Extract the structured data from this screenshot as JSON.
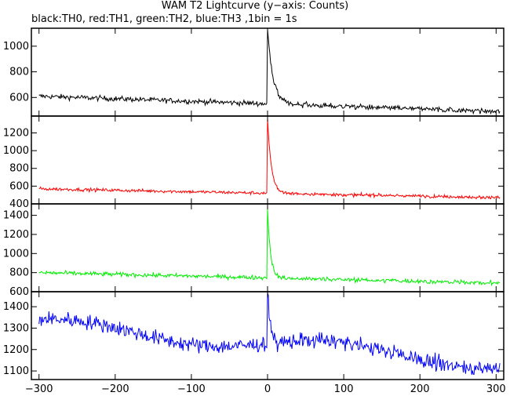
{
  "title": "WAM T2 Lightcurve (y−axis: Counts)",
  "subtitle": "black:TH0, red:TH1, green:TH2, blue:TH3 ,1bin = 1s",
  "chart_data": {
    "type": "line",
    "xlim": [
      -310,
      310
    ],
    "x_ticks": [
      -300,
      -200,
      -100,
      0,
      100,
      200,
      300
    ],
    "x_tick_labels": [
      "−300",
      "−200",
      "−100",
      "0",
      "100",
      "200",
      "300"
    ],
    "series": [
      {
        "name": "TH0",
        "color": "#000000",
        "ylim": [
          455,
          1140
        ],
        "y_ticks": [
          600,
          800,
          1000
        ],
        "y_tick_labels": [
          "600",
          "800",
          "1000"
        ],
        "baseline_start": 610,
        "baseline_end": 490,
        "noise": 20,
        "peak": 1130,
        "decay_tau": 7
      },
      {
        "name": "TH1",
        "color": "#ff0000",
        "ylim": [
          400,
          1390
        ],
        "y_ticks": [
          400,
          600,
          800,
          1000,
          1200
        ],
        "y_tick_labels": [
          "400",
          "600",
          "800",
          "1000",
          "1200"
        ],
        "baseline_start": 570,
        "baseline_end": 470,
        "noise": 18,
        "peak": 1350,
        "decay_tau": 5
      },
      {
        "name": "TH2",
        "color": "#00ee00",
        "ylim": [
          600,
          1520
        ],
        "y_ticks": [
          600,
          800,
          1000,
          1200,
          1400
        ],
        "y_tick_labels": [
          "600",
          "800",
          "1000",
          "1200",
          "1400"
        ],
        "baseline_start": 800,
        "baseline_end": 690,
        "noise": 22,
        "peak": 1460,
        "decay_tau": 4
      },
      {
        "name": "TH3",
        "color": "#0000ff",
        "ylim": [
          1060,
          1470
        ],
        "y_ticks": [
          1100,
          1200,
          1300,
          1400
        ],
        "y_tick_labels": [
          "1100",
          "1200",
          "1300",
          "1400"
        ],
        "baseline_start": 1315,
        "baseline_end": 1140,
        "noise": 35,
        "peak": 1460,
        "decay_tau": 4
      }
    ]
  }
}
